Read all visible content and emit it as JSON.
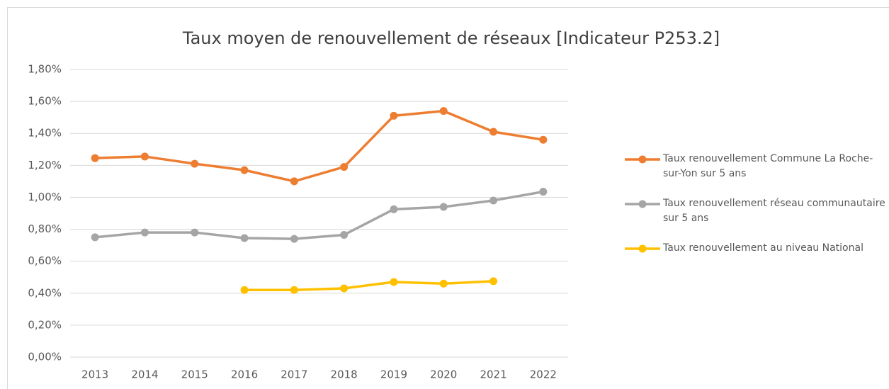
{
  "chart_data": {
    "type": "line",
    "title": "Taux moyen de renouvellement de réseaux [Indicateur P253.2]",
    "categories": [
      "2013",
      "2014",
      "2015",
      "2016",
      "2017",
      "2018",
      "2019",
      "2020",
      "2021",
      "2022"
    ],
    "series": [
      {
        "name": "Taux renouvellement Commune La Roche-sur-Yon sur 5 ans",
        "color": "#ED7D31",
        "values": [
          1.245,
          1.255,
          1.21,
          1.17,
          1.1,
          1.19,
          1.51,
          1.54,
          1.41,
          1.36
        ]
      },
      {
        "name": "Taux renouvellement réseau communautaire sur 5 ans",
        "color": "#A5A5A5",
        "values": [
          0.75,
          0.78,
          0.78,
          0.745,
          0.74,
          0.765,
          0.925,
          0.94,
          0.98,
          1.035
        ]
      },
      {
        "name": "Taux renouvellement au niveau National",
        "color": "#FFC000",
        "values": [
          null,
          null,
          null,
          0.42,
          0.42,
          0.43,
          0.47,
          0.46,
          0.475,
          null
        ]
      }
    ],
    "ylim": [
      0,
      1.8
    ],
    "yticks": [
      {
        "value": 0,
        "label": "0,00%"
      },
      {
        "value": 0.2,
        "label": "0,20%"
      },
      {
        "value": 0.4,
        "label": "0,40%"
      },
      {
        "value": 0.6,
        "label": "0,60%"
      },
      {
        "value": 0.8,
        "label": "0,80%"
      },
      {
        "value": 1.0,
        "label": "1,00%"
      },
      {
        "value": 1.2,
        "label": "1,20%"
      },
      {
        "value": 1.4,
        "label": "1,40%"
      },
      {
        "value": 1.6,
        "label": "1,60%"
      },
      {
        "value": 1.8,
        "label": "1,80%"
      }
    ],
    "grid": true,
    "legend": "right"
  }
}
